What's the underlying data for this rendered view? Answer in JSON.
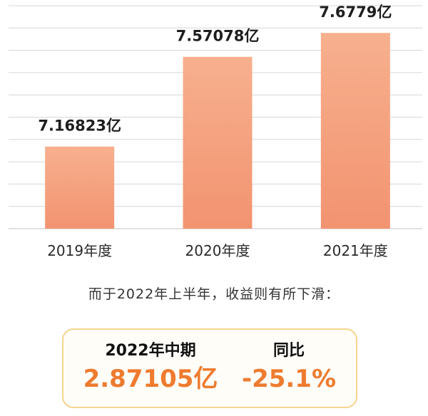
{
  "chart_data": {
    "type": "bar",
    "categories": [
      "2019年度",
      "2020年度",
      "2021年度"
    ],
    "values": [
      7.16823,
      7.57078,
      7.6779
    ],
    "unit": "亿",
    "data_labels": [
      "7.16823亿",
      "7.57078亿",
      "7.6779亿"
    ],
    "xlabel": "",
    "ylabel": "",
    "ylim": [
      6.8,
      7.8
    ],
    "grid": true,
    "bar_color": "#f5a07c",
    "bar_color_light": "#f8b898",
    "grid_color": "#d6d6d6"
  },
  "note": "而于2022年上半年，收益则有所下滑：",
  "summary": {
    "period_label": "2022年中期",
    "period_value": "2.87105亿",
    "yoy_label": "同比",
    "yoy_value": "-25.1%",
    "accent_color": "#ee7b2f",
    "border_color": "#f6d58e"
  }
}
